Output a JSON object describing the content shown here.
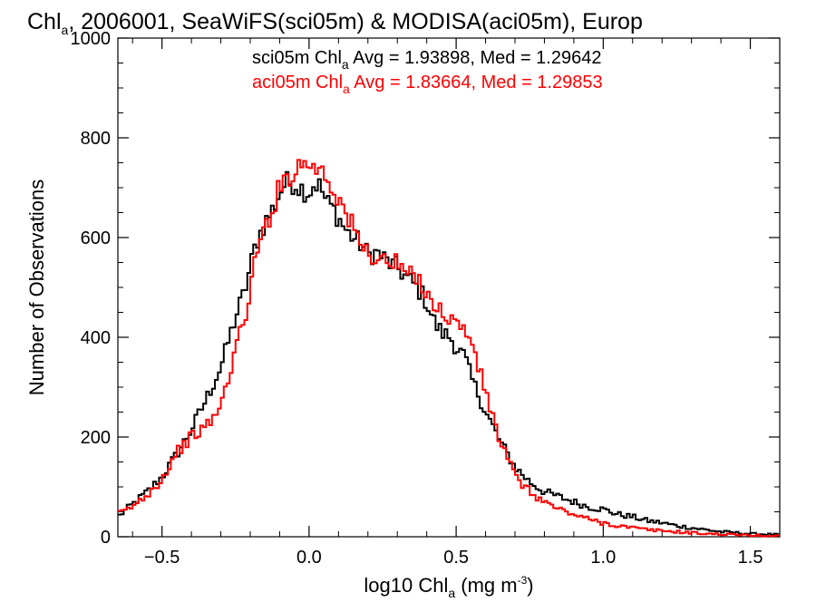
{
  "chart_data": {
    "type": "line",
    "step": true,
    "title": {
      "pre": "Chl",
      "sub": "a",
      "post": ", 2006001, SeaWiFS(sci05m) & MODISA(aci05m), Europ"
    },
    "xlabel": {
      "pre": "log10 Chl",
      "sub": "a",
      "mid": " (mg m",
      "sup": "-3",
      "post": ")"
    },
    "ylabel": "Number of Observations",
    "xlim": [
      -0.65,
      1.6
    ],
    "ylim": [
      0,
      1000
    ],
    "x_ticks": [
      {
        "value": -0.5,
        "label": "−0.5"
      },
      {
        "value": 0.0,
        "label": "0.0"
      },
      {
        "value": 0.5,
        "label": "0.5"
      },
      {
        "value": 1.0,
        "label": "1.0"
      },
      {
        "value": 1.5,
        "label": "1.5"
      }
    ],
    "x_minor_step": 0.1,
    "y_ticks": [
      {
        "value": 0,
        "label": "0"
      },
      {
        "value": 200,
        "label": "200"
      },
      {
        "value": 400,
        "label": "400"
      },
      {
        "value": 600,
        "label": "600"
      },
      {
        "value": 800,
        "label": "800"
      },
      {
        "value": 1000,
        "label": "1000"
      }
    ],
    "y_minor_step": 50,
    "grid": false,
    "annotations": [
      {
        "pre": "sci05m Chl",
        "sub": "a",
        "post": " Avg = 1.93898, Med = 1.29642",
        "color": "#000000"
      },
      {
        "pre": "aci05m Chl",
        "sub": "a",
        "post": " Avg = 1.83664, Med = 1.29853",
        "color": "#ff0000"
      }
    ],
    "series": [
      {
        "color": "#000000",
        "bin_width": 0.01,
        "x": [
          -0.65,
          -0.6,
          -0.55,
          -0.5,
          -0.45,
          -0.4,
          -0.35,
          -0.3,
          -0.27,
          -0.25,
          -0.22,
          -0.2,
          -0.18,
          -0.15,
          -0.12,
          -0.1,
          -0.08,
          -0.05,
          -0.03,
          0.0,
          0.02,
          0.04,
          0.06,
          0.08,
          0.1,
          0.13,
          0.15,
          0.18,
          0.2,
          0.23,
          0.25,
          0.28,
          0.3,
          0.33,
          0.35,
          0.38,
          0.4,
          0.43,
          0.45,
          0.48,
          0.5,
          0.53,
          0.55,
          0.58,
          0.6,
          0.63,
          0.65,
          0.68,
          0.7,
          0.75,
          0.8,
          0.85,
          0.9,
          0.95,
          1.0,
          1.05,
          1.1,
          1.15,
          1.2,
          1.25,
          1.3,
          1.35,
          1.4,
          1.45,
          1.5,
          1.55,
          1.6
        ],
        "y": [
          40,
          65,
          90,
          120,
          165,
          215,
          275,
          340,
          400,
          440,
          490,
          540,
          590,
          630,
          660,
          690,
          710,
          710,
          700,
          690,
          710,
          700,
          670,
          660,
          640,
          610,
          600,
          585,
          565,
          570,
          560,
          545,
          540,
          520,
          510,
          490,
          470,
          425,
          410,
          400,
          380,
          360,
          320,
          280,
          250,
          215,
          190,
          160,
          140,
          110,
          90,
          80,
          70,
          60,
          55,
          45,
          40,
          32,
          28,
          22,
          18,
          14,
          10,
          8,
          6,
          5,
          4
        ]
      },
      {
        "color": "#ff0000",
        "bin_width": 0.01,
        "x": [
          -0.65,
          -0.6,
          -0.55,
          -0.5,
          -0.45,
          -0.4,
          -0.35,
          -0.3,
          -0.27,
          -0.25,
          -0.22,
          -0.2,
          -0.18,
          -0.15,
          -0.12,
          -0.1,
          -0.08,
          -0.05,
          -0.03,
          0.0,
          0.02,
          0.04,
          0.06,
          0.08,
          0.1,
          0.13,
          0.15,
          0.18,
          0.2,
          0.23,
          0.25,
          0.28,
          0.3,
          0.33,
          0.35,
          0.38,
          0.4,
          0.43,
          0.45,
          0.48,
          0.5,
          0.53,
          0.55,
          0.58,
          0.6,
          0.63,
          0.65,
          0.68,
          0.7,
          0.75,
          0.8,
          0.85,
          0.9,
          0.95,
          1.0,
          1.05,
          1.1,
          1.15,
          1.2,
          1.25,
          1.3,
          1.35,
          1.4,
          1.45,
          1.5,
          1.55,
          1.6
        ],
        "y": [
          45,
          60,
          85,
          115,
          170,
          200,
          220,
          260,
          330,
          380,
          430,
          500,
          560,
          620,
          665,
          700,
          720,
          735,
          745,
          755,
          730,
          750,
          720,
          700,
          680,
          640,
          620,
          580,
          570,
          560,
          555,
          550,
          545,
          530,
          520,
          510,
          495,
          460,
          450,
          440,
          430,
          410,
          400,
          330,
          290,
          230,
          190,
          150,
          120,
          90,
          70,
          55,
          45,
          35,
          28,
          22,
          18,
          14,
          12,
          10,
          8,
          6,
          5,
          4,
          3,
          2,
          2
        ]
      }
    ]
  }
}
